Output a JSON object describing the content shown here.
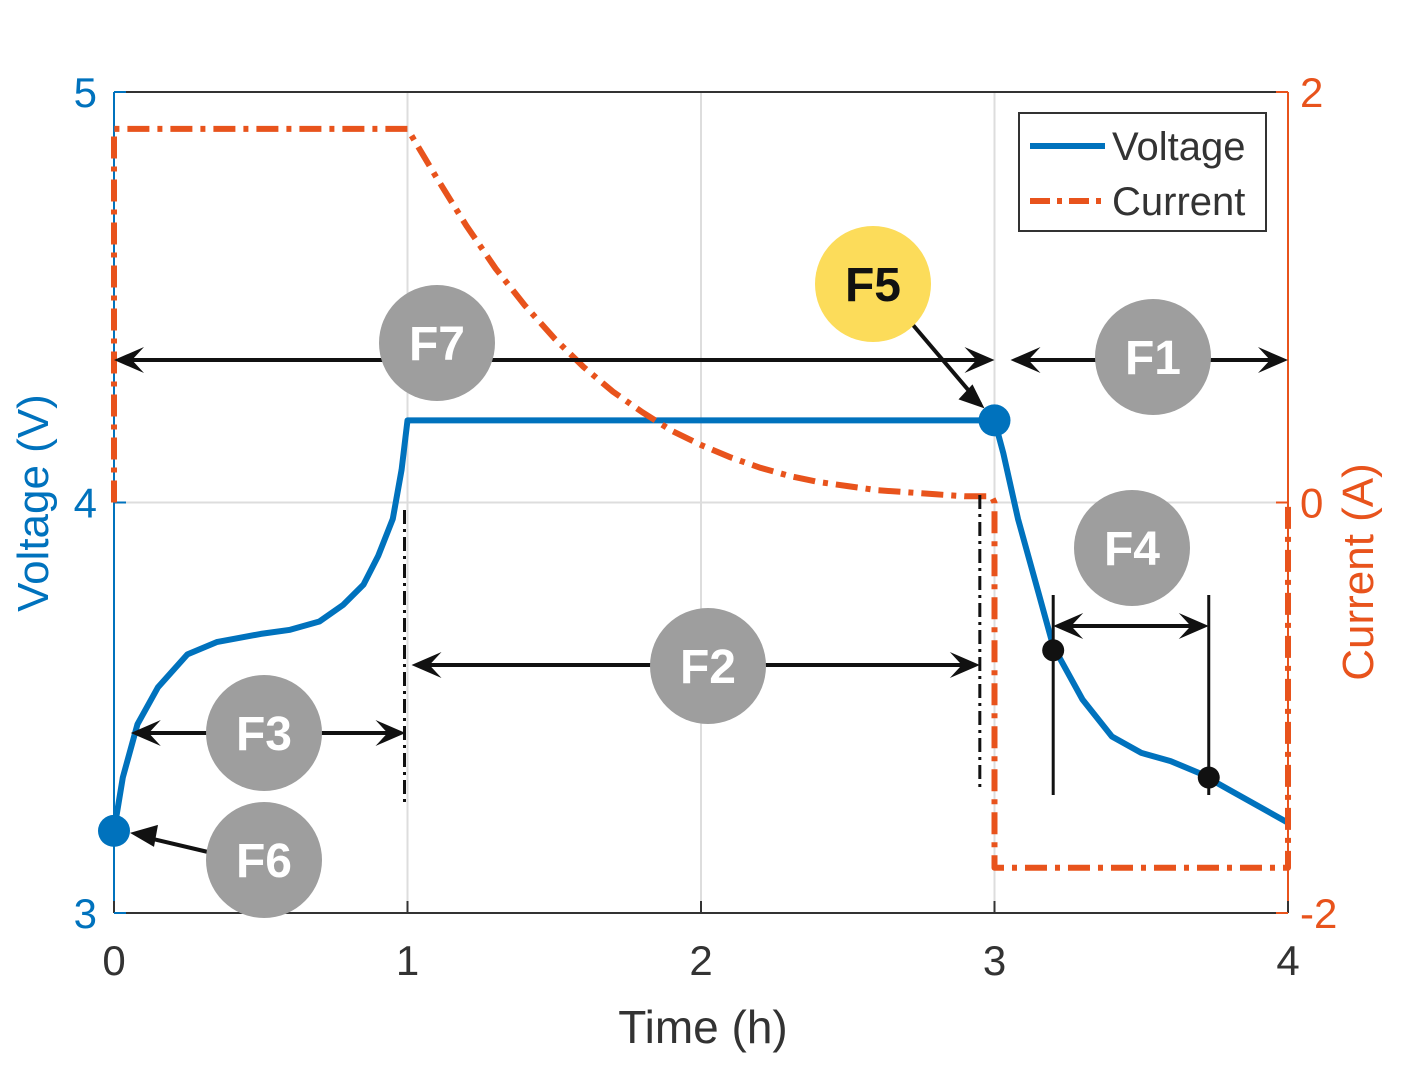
{
  "chart_data": {
    "type": "line",
    "xlabel": "Time (h)",
    "ylabel_left": "Voltage (V)",
    "ylabel_right": "Current (A)",
    "xlim": [
      0,
      4
    ],
    "ylim_left": [
      3,
      5
    ],
    "ylim_right": [
      -2,
      2
    ],
    "x_ticks": [
      0,
      1,
      2,
      3,
      4
    ],
    "y_ticks_left": [
      3,
      4,
      5
    ],
    "y_ticks_right": [
      -2,
      0,
      2
    ],
    "x_tick_labels": [
      "0",
      "1",
      "2",
      "3",
      "4"
    ],
    "y_tick_labels_left": [
      "3",
      "4",
      "5"
    ],
    "y_tick_labels_right": [
      "-2",
      "0",
      "2"
    ],
    "grid": true,
    "legend": {
      "position": "top-right",
      "entries": [
        "Voltage",
        "Current"
      ]
    },
    "colors": {
      "voltage": "#0072BD",
      "current": "#E8531C",
      "badge": "#9E9E9E",
      "highlight": "#FCDC5A",
      "axis": "#333333",
      "grid": "#dddddd"
    },
    "series": [
      {
        "name": "Voltage",
        "axis": "left",
        "style": "solid",
        "x": [
          0,
          0.03,
          0.08,
          0.15,
          0.25,
          0.35,
          0.5,
          0.6,
          0.7,
          0.78,
          0.85,
          0.9,
          0.95,
          0.98,
          1.0,
          3.0,
          3.03,
          3.08,
          3.15,
          3.2,
          3.3,
          3.4,
          3.5,
          3.6,
          3.7,
          3.8,
          3.9,
          4.0
        ],
        "y": [
          3.2,
          3.33,
          3.46,
          3.55,
          3.63,
          3.66,
          3.68,
          3.69,
          3.71,
          3.75,
          3.8,
          3.87,
          3.96,
          4.08,
          4.2,
          4.2,
          4.12,
          3.96,
          3.78,
          3.65,
          3.52,
          3.43,
          3.39,
          3.37,
          3.34,
          3.3,
          3.26,
          3.22
        ]
      },
      {
        "name": "Current",
        "axis": "right",
        "style": "dashdot",
        "x": [
          0,
          0,
          1.0,
          1.1,
          1.2,
          1.3,
          1.4,
          1.5,
          1.6,
          1.7,
          1.8,
          1.9,
          2.0,
          2.1,
          2.2,
          2.3,
          2.4,
          2.5,
          2.6,
          2.7,
          2.8,
          2.9,
          2.99,
          3.0,
          3.0,
          4.0,
          4.0
        ],
        "y": [
          0,
          1.82,
          1.82,
          1.58,
          1.35,
          1.14,
          0.96,
          0.8,
          0.66,
          0.54,
          0.44,
          0.35,
          0.28,
          0.22,
          0.17,
          0.13,
          0.1,
          0.08,
          0.06,
          0.05,
          0.04,
          0.03,
          0.03,
          0.0,
          -1.78,
          -1.78,
          0.0
        ]
      }
    ],
    "annotations": {
      "features": [
        {
          "id": "F1",
          "label": "F1",
          "span": [
            3.0,
            4.0
          ],
          "highlight": false
        },
        {
          "id": "F2",
          "label": "F2",
          "span": [
            1.0,
            2.95
          ],
          "highlight": false
        },
        {
          "id": "F3",
          "label": "F3",
          "span": [
            0.03,
            1.0
          ],
          "highlight": false
        },
        {
          "id": "F4",
          "label": "F4",
          "span": [
            3.2,
            3.73
          ],
          "highlight": false
        },
        {
          "id": "F5",
          "label": "F5",
          "point": [
            3.0,
            4.2
          ],
          "highlight": true
        },
        {
          "id": "F6",
          "label": "F6",
          "point": [
            0.0,
            3.2
          ],
          "highlight": false
        },
        {
          "id": "F7",
          "label": "F7",
          "span": [
            0.0,
            3.0
          ],
          "highlight": false
        }
      ],
      "f4_markers": [
        {
          "x": 3.2,
          "y": 3.64
        },
        {
          "x": 3.73,
          "y": 3.33
        }
      ]
    }
  }
}
